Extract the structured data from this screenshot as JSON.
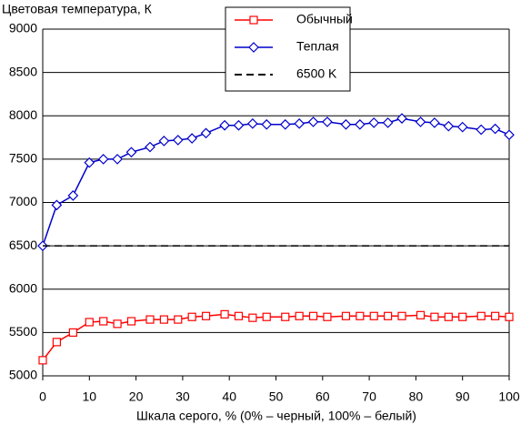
{
  "chart_data": {
    "type": "line",
    "title": "Цветовая температура, К",
    "x_label": "Шкала серого, % (0% – черный, 100% – белый)",
    "x": [
      0,
      3,
      6.5,
      10,
      13,
      16,
      19,
      23,
      26,
      29,
      32,
      35,
      39,
      42,
      45,
      48,
      52,
      55,
      58,
      61,
      65,
      68,
      71,
      74,
      77,
      81,
      84,
      87,
      90,
      94,
      97,
      100
    ],
    "series": [
      {
        "name": "Обычный",
        "color": "#ff0000",
        "marker": "square",
        "values": [
          5180,
          5390,
          5500,
          5620,
          5630,
          5600,
          5630,
          5650,
          5650,
          5650,
          5680,
          5690,
          5710,
          5690,
          5670,
          5680,
          5680,
          5690,
          5690,
          5680,
          5690,
          5690,
          5690,
          5690,
          5690,
          5700,
          5680,
          5680,
          5680,
          5690,
          5690,
          5680
        ]
      },
      {
        "name": "Теплая",
        "color": "#0000cc",
        "marker": "diamond",
        "values": [
          6500,
          6970,
          7080,
          7460,
          7500,
          7500,
          7580,
          7640,
          7710,
          7720,
          7740,
          7800,
          7890,
          7890,
          7910,
          7900,
          7900,
          7910,
          7930,
          7930,
          7900,
          7900,
          7920,
          7920,
          7970,
          7930,
          7920,
          7880,
          7870,
          7840,
          7850,
          7780
        ]
      },
      {
        "name": "6500 K",
        "color": "#000000",
        "dashed": true,
        "values": [
          6500,
          6500,
          6500,
          6500,
          6500,
          6500,
          6500,
          6500,
          6500,
          6500,
          6500,
          6500,
          6500,
          6500,
          6500,
          6500,
          6500,
          6500,
          6500,
          6500,
          6500,
          6500,
          6500,
          6500,
          6500,
          6500,
          6500,
          6500,
          6500,
          6500,
          6500,
          6500
        ]
      }
    ],
    "xlim": [
      0,
      100
    ],
    "xticks": [
      0,
      10,
      20,
      30,
      40,
      50,
      60,
      70,
      80,
      90,
      100
    ],
    "ylim": [
      5000,
      9000
    ],
    "yticks": [
      5000,
      5500,
      6000,
      6500,
      7000,
      7500,
      8000,
      8500,
      9000
    ],
    "grid": true,
    "legend": "top"
  }
}
